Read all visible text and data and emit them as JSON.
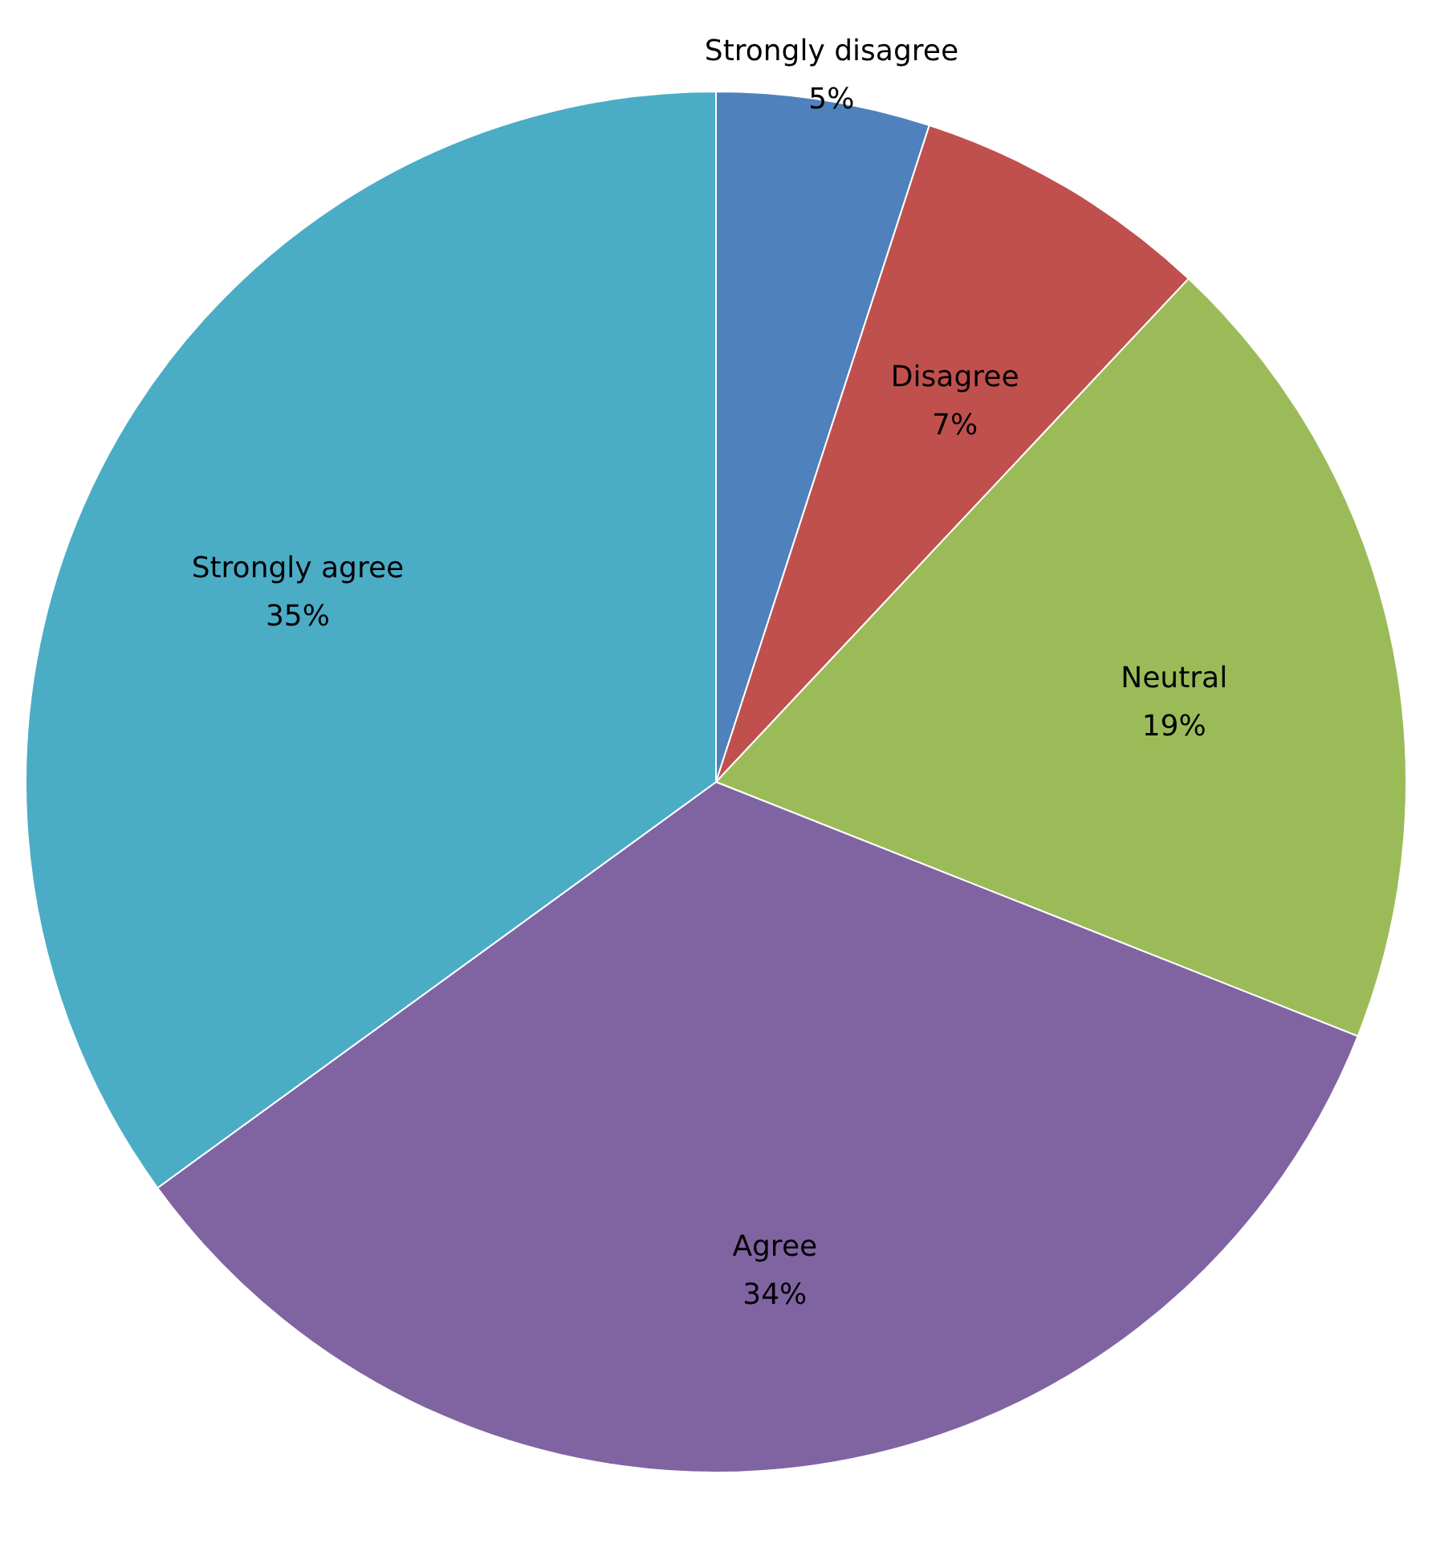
{
  "chart_data": {
    "type": "pie",
    "categories": [
      "Strongly disagree",
      "Disagree",
      "Neutral",
      "Agree",
      "Strongly agree"
    ],
    "values": [
      5,
      7,
      19,
      34,
      35
    ],
    "value_labels": [
      "5%",
      "7%",
      "19%",
      "34%",
      "35%"
    ],
    "colors": [
      "#4f81bd",
      "#c0504d",
      "#9bbb59",
      "#8064a2",
      "#4bacc6"
    ]
  }
}
